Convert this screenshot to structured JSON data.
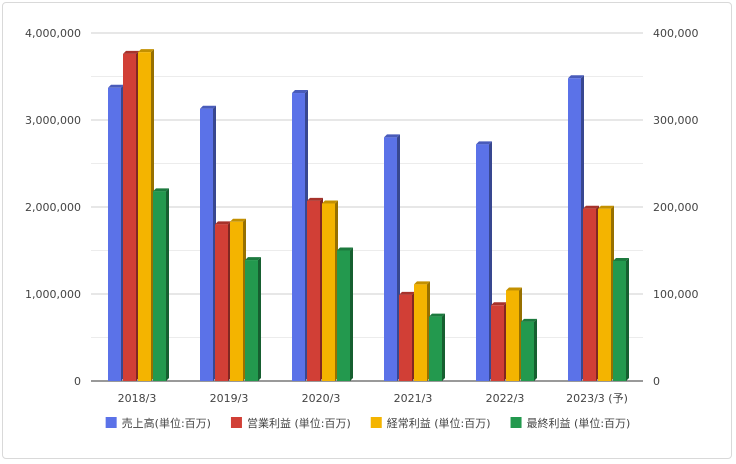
{
  "chart_data": {
    "type": "bar",
    "categories": [
      "2018/3",
      "2019/3",
      "2020/3",
      "2021/3",
      "2022/3",
      "2023/3 (予)"
    ],
    "left_axis": {
      "ylim": [
        0,
        4000000
      ],
      "ticks": [
        "0",
        "1,000,000",
        "2,000,000",
        "3,000,000",
        "4,000,000"
      ]
    },
    "right_axis": {
      "ylim": [
        0,
        400000
      ],
      "ticks": [
        "0",
        "100,000",
        "200,000",
        "300,000",
        "400,000"
      ]
    },
    "series": [
      {
        "name": "売上高(単位:百万)",
        "axis": "left",
        "color": "#5b72e8",
        "values": [
          3370000,
          3130000,
          3310000,
          2800000,
          2720000,
          3480000
        ]
      },
      {
        "name": "営業利益 (単位:百万)",
        "axis": "right",
        "color": "#d13f36",
        "values": [
          376000,
          180000,
          207000,
          99000,
          87000,
          198000
        ]
      },
      {
        "name": "経常利益 (単位:百万)",
        "axis": "right",
        "color": "#f4b400",
        "values": [
          378000,
          183000,
          204000,
          111000,
          104000,
          198000
        ]
      },
      {
        "name": "最終利益 (単位:百万)",
        "axis": "right",
        "color": "#23994e",
        "values": [
          218000,
          139000,
          150000,
          74000,
          68000,
          138000
        ]
      }
    ],
    "grid": true,
    "legend_position": "bottom"
  }
}
